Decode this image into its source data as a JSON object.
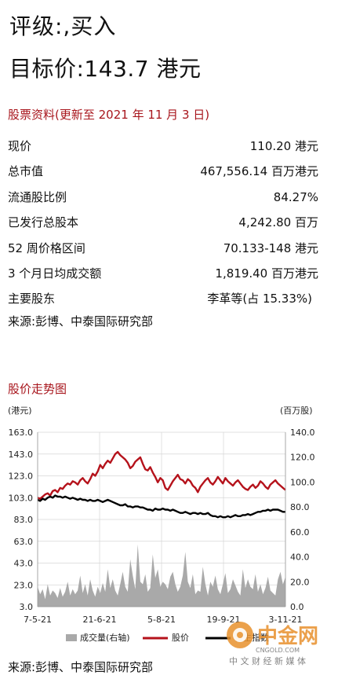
{
  "header": {
    "rating": "评级:,买入",
    "target": "目标价:143.7 港元"
  },
  "stock_info": {
    "title": "股票资料(更新至 2021 年 11 月 3 日)",
    "rows": [
      {
        "label": "现价",
        "value": "110.20 港元"
      },
      {
        "label": "总市值",
        "value": "467,556.14 百万港元"
      },
      {
        "label": "流通股比例",
        "value": "84.27%"
      },
      {
        "label": "已发行总股本",
        "value": "4,242.80 百万"
      },
      {
        "label": "52 周价格区间",
        "value": "70.133-148 港元"
      },
      {
        "label": "3 个月日均成交额",
        "value": "1,819.40 百万港元"
      },
      {
        "label": "主要股东",
        "value": "李革等(占 15.33%)"
      }
    ],
    "source": "来源:彭博、中泰国际研究部"
  },
  "chart_section": {
    "title": "股价走势图",
    "source": "来源:彭博、中泰国际研究部"
  },
  "watermark": {
    "brand": "中金网",
    "url": "CNGOLD.COM",
    "tagline": "中 文 财 经 新 媒 体"
  },
  "colors": {
    "accent_red": "#a8161d",
    "price_line": "#b5121b",
    "index_line": "#000000",
    "volume_fill": "#a9a9a9",
    "watermark_orange": "#e8902c"
  },
  "chart_data": {
    "type": "line",
    "left_axis_unit": "(港元)",
    "right_axis_unit": "(百万股)",
    "yticks_left": [
      "163.0",
      "143.0",
      "123.0",
      "103.0",
      "83.0",
      "63.0",
      "43.0",
      "23.0",
      "3.0"
    ],
    "yticks_right": [
      "140.0",
      "120.0",
      "100.0",
      "80.0",
      "60.0",
      "40.0",
      "20.0",
      "0.0"
    ],
    "ylim_left": [
      3,
      163
    ],
    "ylim_right": [
      0,
      140
    ],
    "xticks": [
      "7-5-21",
      "21-6-21",
      "5-8-21",
      "19-9-21",
      "3-11-21"
    ],
    "grid": true,
    "legend_position": "bottom",
    "series": [
      {
        "name": "成交量(右轴)",
        "axis": "right",
        "kind": "area",
        "values": [
          16,
          10,
          14,
          6,
          18,
          9,
          13,
          11,
          7,
          15,
          8,
          12,
          20,
          9,
          14,
          10,
          13,
          25,
          11,
          18,
          9,
          22,
          13,
          8,
          16,
          11,
          19,
          12,
          30,
          15,
          22,
          13,
          9,
          18,
          28,
          16,
          12,
          38,
          25,
          14,
          50,
          20,
          18,
          26,
          12,
          15,
          42,
          23,
          30,
          16,
          20,
          18,
          14,
          24,
          28,
          18,
          12,
          16,
          25,
          44,
          20,
          15,
          26,
          10,
          13,
          12,
          32,
          18,
          9,
          20,
          16,
          25,
          14,
          10,
          18,
          27,
          11,
          14,
          22,
          17,
          12,
          9,
          30,
          15,
          22,
          16,
          14,
          26,
          12,
          18,
          10,
          15,
          24,
          13,
          11,
          9,
          22,
          28,
          18,
          24
        ]
      },
      {
        "name": "股价",
        "axis": "left",
        "kind": "line",
        "values": [
          103,
          102,
          104,
          106,
          107,
          105,
          109,
          110,
          108,
          112,
          111,
          114,
          116,
          115,
          118,
          117,
          115,
          119,
          121,
          118,
          116,
          120,
          125,
          123,
          127,
          133,
          130,
          134,
          137,
          135,
          139,
          143,
          145,
          142,
          140,
          138,
          135,
          130,
          132,
          136,
          138,
          140,
          134,
          129,
          128,
          131,
          126,
          122,
          117,
          121,
          119,
          112,
          110,
          114,
          118,
          121,
          124,
          120,
          119,
          116,
          120,
          118,
          114,
          112,
          108,
          113,
          116,
          119,
          121,
          117,
          115,
          118,
          122,
          119,
          116,
          121,
          118,
          116,
          114,
          117,
          119,
          116,
          113,
          111,
          110,
          113,
          115,
          112,
          114,
          118,
          116,
          113,
          111,
          115,
          117,
          119,
          116,
          114,
          112,
          110
        ]
      },
      {
        "name": "恒生指数",
        "axis": "left",
        "kind": "line",
        "values": [
          101,
          100,
          102,
          101,
          103,
          104,
          103,
          105,
          104,
          104,
          103,
          104,
          103,
          102,
          103,
          102,
          101,
          102,
          101,
          101,
          100,
          101,
          100,
          100,
          101,
          100,
          99,
          100,
          101,
          100,
          99,
          98,
          97,
          96,
          96,
          97,
          95,
          95,
          94,
          95,
          95,
          94,
          94,
          93,
          92,
          92,
          91,
          93,
          92,
          92,
          93,
          92,
          92,
          91,
          92,
          91,
          90,
          89,
          89,
          90,
          89,
          88,
          89,
          89,
          88,
          89,
          88,
          88,
          89,
          87,
          86,
          86,
          85,
          86,
          85,
          85,
          86,
          85,
          86,
          87,
          86,
          86,
          87,
          87,
          88,
          87,
          88,
          89,
          90,
          90,
          91,
          91,
          92,
          91,
          92,
          92,
          92,
          91,
          90,
          90
        ]
      }
    ]
  }
}
